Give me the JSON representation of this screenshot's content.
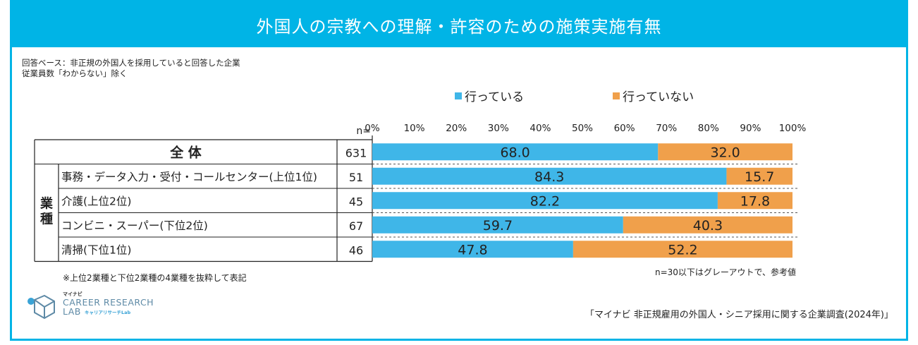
{
  "title": "外国人の宗教への理解・許容のための施策実施有無",
  "notes": {
    "base_line1": "回答ベース：非正規の外国人を採用していると回答した企業",
    "base_line2": "従業員数「わからない」除く",
    "footnote_left": "※上位2業種と下位2業種の4業種を抜粋して表記",
    "footnote_right": "n=30以下はグレーアウトで、参考値"
  },
  "source": "「マイナビ 非正規雇用の外国人・シニア採用に関する企業調査(2024年)」",
  "logo": {
    "small": "マイナビ",
    "line1": "CAREER RESEARCH",
    "line2": "LAB",
    "kana": "キャリアリサーチLab"
  },
  "colors": {
    "accent": "#00b4e6",
    "series_doing": "#3fb6e8",
    "series_not_doing": "#f0a04b"
  },
  "chart_data": {
    "type": "bar",
    "orientation": "horizontal",
    "stacked": true,
    "n_label": "n=",
    "xlim": [
      0,
      100
    ],
    "ticks": [
      "0%",
      "10%",
      "20%",
      "30%",
      "40%",
      "50%",
      "60%",
      "70%",
      "80%",
      "90%",
      "100%"
    ],
    "group_label": "業種",
    "legend_position": "top",
    "categories": [
      "全 体",
      "事務・データ入力・受付・コールセンター(上位1位)",
      "介護(上位2位)",
      "コンビニ・スーパー(下位2位)",
      "清掃(下位1位)"
    ],
    "n_values": [
      "631",
      "51",
      "45",
      "67",
      "46"
    ],
    "series": [
      {
        "name": "行っている",
        "values": [
          68.0,
          84.3,
          82.2,
          59.7,
          47.8
        ],
        "labels": [
          "68.0",
          "84.3",
          "82.2",
          "59.7",
          "47.8"
        ]
      },
      {
        "name": "行っていない",
        "values": [
          32.0,
          15.7,
          17.8,
          40.3,
          52.2
        ],
        "labels": [
          "32.0",
          "15.7",
          "17.8",
          "40.3",
          "52.2"
        ]
      }
    ]
  }
}
